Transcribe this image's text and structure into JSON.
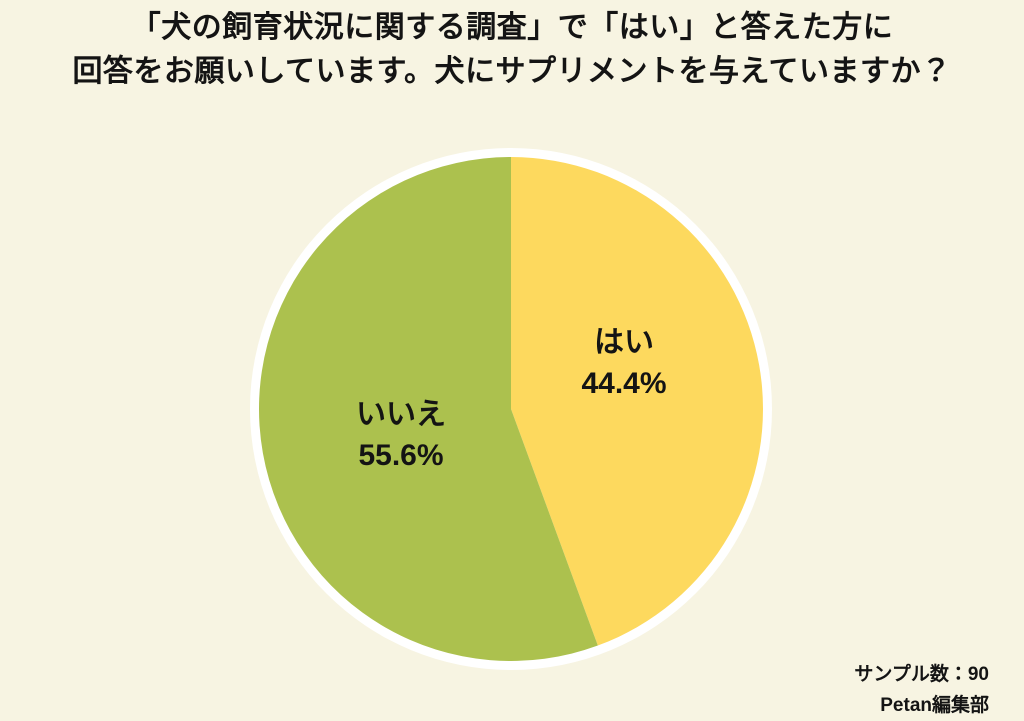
{
  "page": {
    "background_color": "#f7f4e2",
    "text_color": "#141414"
  },
  "title": {
    "line1": "「犬の飼育状況に関する調査」で「はい」と答えた方に",
    "line2": "回答をお願いしています。犬にサプリメントを与えていますか？"
  },
  "chart_data": {
    "type": "pie",
    "title": "犬にサプリメントを与えていますか？",
    "start_angle": "top",
    "direction": "clockwise",
    "border_color": "#ffffff",
    "legend_position": "inside",
    "slices": [
      {
        "label": "はい",
        "value_pct": 44.4,
        "display": "44.4%",
        "color": "#fdd95e"
      },
      {
        "label": "いいえ",
        "value_pct": 55.6,
        "display": "55.6%",
        "color": "#acc14e"
      }
    ],
    "sample_size": 90
  },
  "footer": {
    "sample_label": "サンプル数：90",
    "credit": "Petan編集部"
  }
}
